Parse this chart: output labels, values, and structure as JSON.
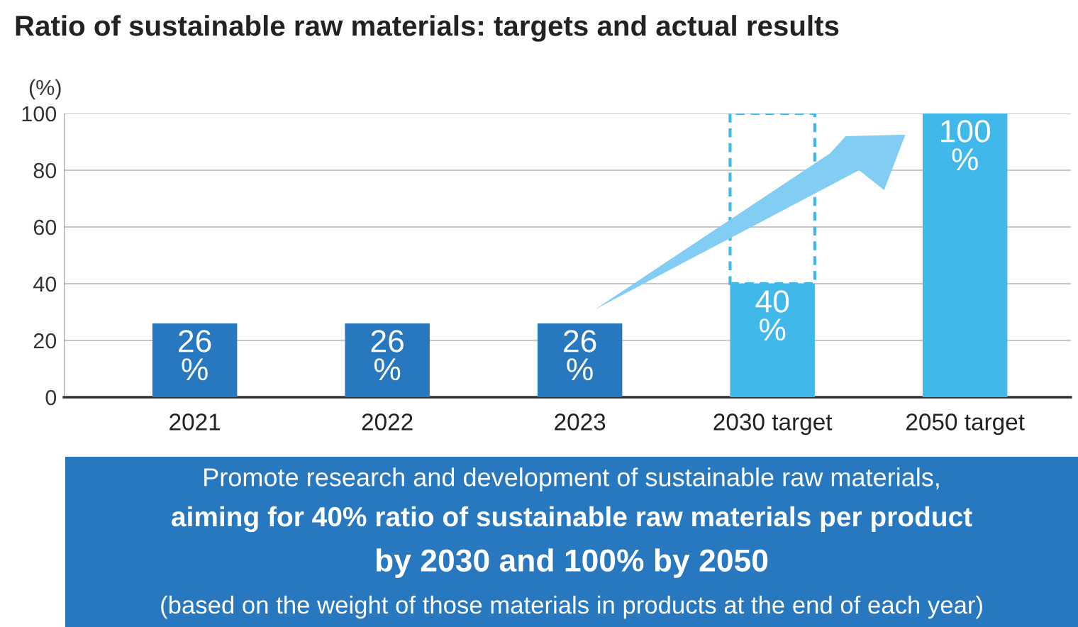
{
  "chart_data": {
    "type": "bar",
    "title": "Ratio of sustainable raw materials: targets and actual results",
    "ylabel": "(%)",
    "categories": [
      "2021",
      "2022",
      "2023",
      "2030 target",
      "2050 target"
    ],
    "values": [
      26,
      26,
      26,
      40,
      100
    ],
    "colors": [
      "#2878c0",
      "#2878c0",
      "#2878c0",
      "#40b8ea",
      "#40b8ea"
    ],
    "value_labels": [
      "26\n%",
      "26\n%",
      "26\n%",
      "40\n%",
      "100\n%"
    ],
    "ylim": [
      0,
      100
    ],
    "yticks": [
      0,
      20,
      40,
      60,
      80,
      100
    ],
    "grid": "y",
    "annotations": [
      "Promote research and development of sustainable raw materials,",
      "aiming for 40% ratio of sustainable raw materials per product",
      "by 2030 and 100% by 2050",
      "(based on the weight of those materials in products at the end of each year)"
    ]
  }
}
